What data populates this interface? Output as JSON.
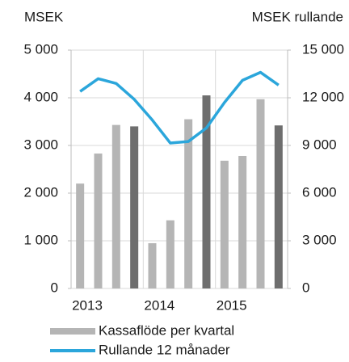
{
  "chart_data": {
    "type": "bar_line",
    "y_label": "MSEK",
    "y2_label": "MSEK rullande",
    "categories": [
      "2013",
      null,
      null,
      null,
      "2014",
      null,
      null,
      null,
      "2015",
      null,
      null,
      null
    ],
    "series": [
      {
        "name": "Kassaflöde per kvartal",
        "type": "bar",
        "color": "#b5b5b5",
        "highlight_color": "#6e6e6e",
        "values": [
          2200,
          2830,
          3430,
          3400,
          950,
          1430,
          3550,
          4050,
          2680,
          2780,
          3970,
          3420
        ]
      },
      {
        "name": "Rullande 12 månader",
        "type": "line",
        "axis": "y2",
        "color": "#2ba6db",
        "values": [
          12400,
          13200,
          12900,
          11900,
          10600,
          9150,
          9250,
          10100,
          11700,
          13100,
          13600,
          12800
        ]
      }
    ],
    "ylim": [
      0,
      5000
    ],
    "yticks": [
      0,
      {
        "value": 1000,
        "label": "1 000"
      },
      {
        "value": 2000,
        "label": "2 000"
      },
      {
        "value": 3000,
        "label": "3 000"
      },
      {
        "value": 4000,
        "label": "4 000"
      },
      {
        "value": 5000,
        "label": "5 000"
      }
    ],
    "y2lim": [
      0,
      15000
    ],
    "y2ticks": [
      0,
      {
        "value": 3000,
        "label": "3 000"
      },
      {
        "value": 6000,
        "label": "6 000"
      },
      {
        "value": 9000,
        "label": "9 000"
      },
      {
        "value": 12000,
        "label": "12 000"
      },
      {
        "value": 15000,
        "label": "15 000"
      }
    ],
    "grid": true
  }
}
